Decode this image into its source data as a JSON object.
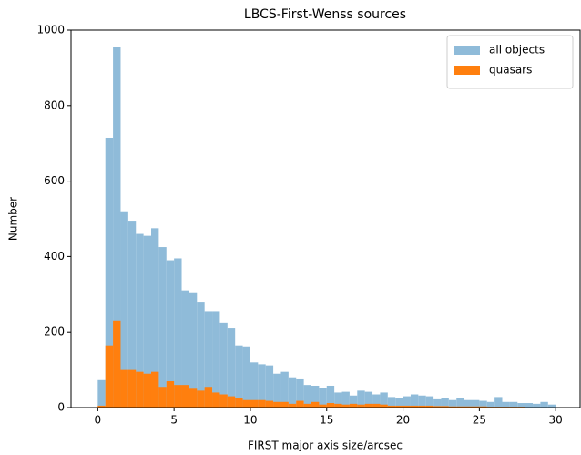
{
  "chart_data": {
    "type": "histogram",
    "title": "LBCS-First-Wenss sources",
    "x_label": "FIRST major axis size/arcsec",
    "y_label": "Number",
    "bins": [
      0,
      0.5,
      1,
      1.5,
      2,
      2.5,
      3,
      3.5,
      4,
      4.5,
      5,
      5.5,
      6,
      6.5,
      7,
      7.5,
      8,
      8.5,
      9,
      9.5,
      10,
      10.5,
      11,
      11.5,
      12,
      12.5,
      13,
      13.5,
      14,
      14.5,
      15,
      15.5,
      16,
      16.5,
      17,
      17.5,
      18,
      18.5,
      19,
      19.5,
      20,
      20.5,
      21,
      21.5,
      22,
      22.5,
      23,
      23.5,
      24,
      24.5,
      25,
      25.5,
      26,
      26.5,
      27,
      27.5,
      28,
      28.5,
      29,
      29.5,
      30
    ],
    "series": [
      {
        "name": "all objects",
        "color": "#8fbbd9",
        "values": [
          73,
          715,
          955,
          520,
          495,
          460,
          455,
          475,
          425,
          390,
          395,
          310,
          305,
          280,
          255,
          255,
          225,
          210,
          165,
          160,
          120,
          115,
          112,
          90,
          95,
          78,
          75,
          60,
          58,
          52,
          58,
          40,
          42,
          32,
          45,
          42,
          35,
          40,
          28,
          25,
          30,
          35,
          32,
          30,
          22,
          25,
          20,
          25,
          20,
          20,
          18,
          15,
          28,
          15,
          15,
          12,
          12,
          10,
          15,
          8
        ]
      },
      {
        "name": "quasars",
        "color": "#ff7f0e",
        "values": [
          5,
          165,
          230,
          100,
          100,
          95,
          90,
          95,
          55,
          70,
          60,
          60,
          50,
          45,
          55,
          40,
          35,
          30,
          25,
          20,
          20,
          20,
          18,
          15,
          15,
          10,
          18,
          10,
          15,
          8,
          12,
          10,
          8,
          10,
          8,
          10,
          10,
          8,
          5,
          5,
          5,
          5,
          5,
          5,
          4,
          4,
          3,
          3,
          3,
          3,
          3,
          2,
          2,
          2,
          2,
          2,
          1,
          1,
          1,
          1
        ]
      }
    ],
    "xlim": [
      -1.75,
      31.6
    ],
    "ylim": [
      0,
      1000
    ],
    "xticks": [
      0,
      5,
      10,
      15,
      20,
      25,
      30
    ],
    "yticks": [
      0,
      200,
      400,
      600,
      800,
      1000
    ],
    "legend": "upper right"
  }
}
